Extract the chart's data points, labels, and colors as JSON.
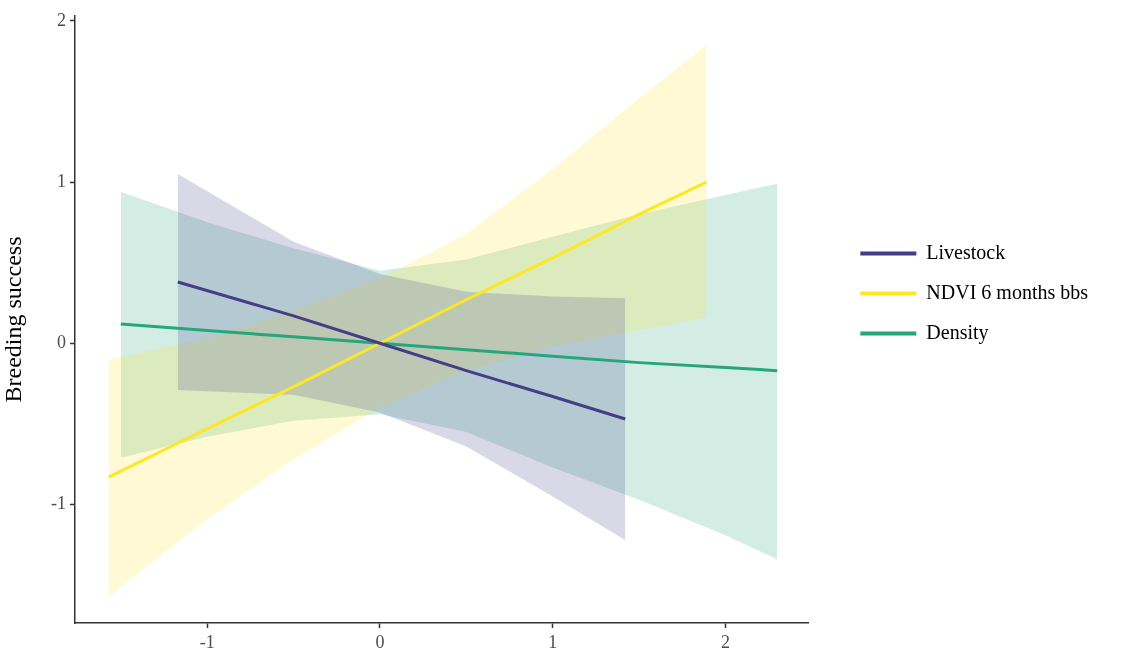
{
  "chart_data": {
    "type": "line",
    "ylabel": "Breeding success",
    "xlim": [
      -1.765,
      2.48
    ],
    "ylim": [
      -1.735,
      2.03
    ],
    "xticks": [
      -1,
      0,
      1,
      2
    ],
    "yticks": [
      -1,
      0,
      1,
      2
    ],
    "grid": false,
    "legend": "right",
    "marker": "none",
    "line_style": "solid",
    "series": [
      {
        "name": "Livestock",
        "color": "#433e85",
        "x": [
          -1.17,
          -0.5,
          0,
          0.5,
          1,
          1.42
        ],
        "values": [
          0.38,
          0.17,
          0,
          -0.17,
          -0.33,
          -0.47
        ],
        "lower": [
          -0.29,
          -0.32,
          -0.43,
          -0.64,
          -0.95,
          -1.22
        ],
        "upper": [
          1.05,
          0.63,
          0.43,
          0.32,
          0.29,
          0.28
        ]
      },
      {
        "name": "NDVI 6 months bbs",
        "color": "#fde725",
        "x": [
          -1.57,
          -1,
          -0.5,
          0,
          0.5,
          1,
          1.5,
          1.89
        ],
        "values": [
          -0.83,
          -0.53,
          -0.27,
          0,
          0.27,
          0.53,
          0.8,
          1.0
        ],
        "lower": [
          -1.57,
          -1.09,
          -0.72,
          -0.4,
          -0.17,
          -0.02,
          0.08,
          0.16
        ],
        "upper": [
          -0.1,
          0.03,
          0.2,
          0.4,
          0.68,
          1.08,
          1.52,
          1.85
        ]
      },
      {
        "name": "Density",
        "color": "#25a67c",
        "x": [
          -1.5,
          -1,
          -0.5,
          0,
          0.5,
          1,
          1.5,
          2,
          2.3
        ],
        "values": [
          0.12,
          0.08,
          0.04,
          0,
          -0.04,
          -0.08,
          -0.12,
          -0.15,
          -0.17
        ],
        "lower": [
          -0.71,
          -0.58,
          -0.48,
          -0.44,
          -0.55,
          -0.77,
          -0.97,
          -1.19,
          -1.34
        ],
        "upper": [
          0.94,
          0.75,
          0.59,
          0.45,
          0.52,
          0.66,
          0.8,
          0.92,
          0.99
        ]
      }
    ]
  }
}
